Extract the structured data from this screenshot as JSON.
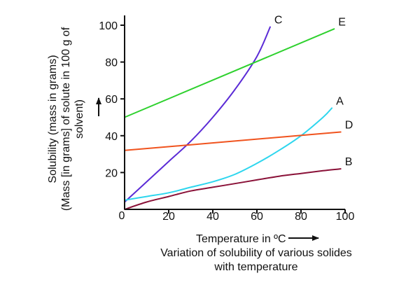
{
  "chart_data": {
    "type": "line",
    "xlabel": "Temperature in ºC",
    "ylabel_lines": [
      "Solubility (mass in grams)",
      "(Mass [in grams] of solute in 100 g of",
      "solvent)"
    ],
    "caption_lines": [
      "Variation of solubility of various solides",
      "with temperature"
    ],
    "origin_label": "0",
    "xlim": [
      0,
      100
    ],
    "ylim": [
      0,
      100
    ],
    "x_ticks": [
      20,
      40,
      60,
      80,
      100
    ],
    "y_ticks": [
      20,
      40,
      60,
      80,
      100
    ],
    "series": [
      {
        "name": "C",
        "color": "#5b2bd6",
        "x": [
          0,
          10,
          20,
          30,
          40,
          50,
          60,
          66
        ],
        "y": [
          4,
          15,
          26,
          37,
          50,
          65,
          83,
          99
        ]
      },
      {
        "name": "E",
        "color": "#2ed12e",
        "x": [
          0,
          95
        ],
        "y": [
          50,
          98
        ]
      },
      {
        "name": "A",
        "color": "#2ed6ee",
        "x": [
          0,
          10,
          20,
          30,
          40,
          50,
          60,
          70,
          80,
          90,
          94
        ],
        "y": [
          5,
          7,
          9,
          12,
          15,
          19,
          25,
          32,
          40,
          50,
          55
        ]
      },
      {
        "name": "D",
        "color": "#f0531e",
        "x": [
          0,
          98
        ],
        "y": [
          32,
          42
        ]
      },
      {
        "name": "B",
        "color": "#8a1138",
        "x": [
          0,
          10,
          20,
          30,
          40,
          50,
          60,
          70,
          80,
          90,
          98
        ],
        "y": [
          0,
          4,
          7,
          10,
          12,
          14,
          16,
          18,
          19.5,
          21,
          22
        ]
      }
    ]
  }
}
